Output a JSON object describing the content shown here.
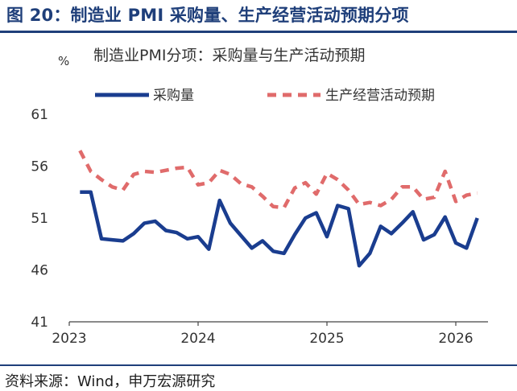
{
  "header": {
    "figure_title": "图 20：制造业 PMI 采购量、生产经营活动预期分项"
  },
  "source": {
    "text": "资料来源：Wind，申万宏源研究"
  },
  "colors": {
    "brand": "#1f3f7a",
    "series_purchase": "#1a3d8f",
    "series_expectation": "#e06b6b",
    "axis": "#333333"
  },
  "chart_data": {
    "type": "line",
    "title": "制造业PMI分项：采购量与生产活动预期",
    "ylabel": "%",
    "xlabel": "",
    "ylim": [
      41,
      61
    ],
    "yticks": [
      41,
      46,
      51,
      56,
      61
    ],
    "xlim": [
      2023.0,
      2026.25
    ],
    "xticks": [
      {
        "value": 2023,
        "label": "2023"
      },
      {
        "value": 2024,
        "label": "2024"
      },
      {
        "value": 2025,
        "label": "2025"
      },
      {
        "value": 2026,
        "label": "2026"
      }
    ],
    "legend_position": "top",
    "series": [
      {
        "name": "采购量",
        "style": "solid",
        "x": [
          2023.083,
          2023.167,
          2023.25,
          2023.333,
          2023.417,
          2023.5,
          2023.583,
          2023.667,
          2023.75,
          2023.833,
          2023.917,
          2024.0,
          2024.083,
          2024.167,
          2024.25,
          2024.333,
          2024.417,
          2024.5,
          2024.583,
          2024.667,
          2024.75,
          2024.833,
          2024.917,
          2025.0,
          2025.083,
          2025.167,
          2025.25,
          2025.333,
          2025.417,
          2025.5,
          2025.583,
          2025.667,
          2025.75,
          2025.833,
          2025.917,
          2026.0,
          2026.083,
          2026.167
        ],
        "values": [
          53.5,
          53.5,
          49.0,
          48.9,
          48.8,
          49.5,
          50.5,
          50.7,
          49.8,
          49.6,
          49.0,
          49.2,
          48.0,
          52.7,
          50.5,
          49.3,
          48.1,
          48.8,
          47.8,
          47.6,
          49.4,
          51.0,
          51.5,
          49.2,
          52.2,
          51.9,
          46.4,
          47.6,
          50.2,
          49.5,
          50.5,
          51.6,
          48.9,
          49.4,
          51.1,
          48.6,
          48.1,
          51.0
        ]
      },
      {
        "name": "生产经营活动预期",
        "style": "dashed",
        "x": [
          2023.083,
          2023.167,
          2023.25,
          2023.333,
          2023.417,
          2023.5,
          2023.583,
          2023.667,
          2023.75,
          2023.833,
          2023.917,
          2024.0,
          2024.083,
          2024.167,
          2024.25,
          2024.333,
          2024.417,
          2024.5,
          2024.583,
          2024.667,
          2024.75,
          2024.833,
          2024.917,
          2025.0,
          2025.083,
          2025.167,
          2025.25,
          2025.333,
          2025.417,
          2025.5,
          2025.583,
          2025.667,
          2025.75,
          2025.833,
          2025.917,
          2026.0,
          2026.083,
          2026.167
        ],
        "values": [
          57.5,
          55.5,
          54.7,
          54.0,
          53.7,
          55.2,
          55.5,
          55.4,
          55.6,
          55.8,
          55.9,
          54.2,
          54.4,
          55.6,
          55.2,
          54.3,
          54.0,
          53.1,
          52.1,
          52.0,
          53.9,
          54.4,
          53.3,
          55.3,
          54.7,
          53.7,
          52.3,
          52.5,
          52.2,
          52.8,
          54.0,
          54.0,
          52.8,
          53.0,
          55.5,
          52.6,
          53.2,
          53.4
        ]
      }
    ]
  }
}
